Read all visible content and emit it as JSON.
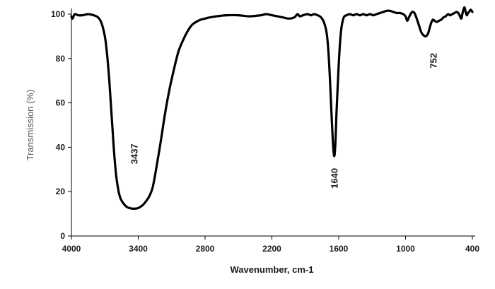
{
  "chart_data": {
    "type": "line",
    "xlabel": "Wavenumber, cm-1",
    "ylabel": "Transmission (%)",
    "xlim": [
      4000,
      400
    ],
    "ylim": [
      0,
      100
    ],
    "x_reversed": true,
    "grid": false,
    "x_ticks": [
      "4000",
      "3400",
      "2800",
      "2200",
      "1600",
      "1000",
      "400"
    ],
    "y_ticks": [
      "0",
      "20",
      "40",
      "60",
      "80",
      "100"
    ],
    "series": [
      {
        "color": "#000000",
        "points": [
          [
            4000,
            99
          ],
          [
            3990,
            98
          ],
          [
            3970,
            100
          ],
          [
            3940,
            99.5
          ],
          [
            3900,
            99.5
          ],
          [
            3850,
            100
          ],
          [
            3800,
            99.5
          ],
          [
            3760,
            98.5
          ],
          [
            3730,
            96
          ],
          [
            3700,
            90
          ],
          [
            3680,
            82
          ],
          [
            3660,
            70
          ],
          [
            3640,
            55
          ],
          [
            3620,
            40
          ],
          [
            3600,
            28
          ],
          [
            3580,
            21
          ],
          [
            3560,
            17
          ],
          [
            3530,
            14.5
          ],
          [
            3500,
            13
          ],
          [
            3470,
            12.5
          ],
          [
            3437,
            12.3
          ],
          [
            3400,
            12.6
          ],
          [
            3370,
            13.5
          ],
          [
            3340,
            15
          ],
          [
            3300,
            18
          ],
          [
            3270,
            22
          ],
          [
            3240,
            30
          ],
          [
            3200,
            42
          ],
          [
            3160,
            55
          ],
          [
            3120,
            66
          ],
          [
            3080,
            75
          ],
          [
            3040,
            83
          ],
          [
            3000,
            88
          ],
          [
            2960,
            92
          ],
          [
            2920,
            95
          ],
          [
            2880,
            96.5
          ],
          [
            2840,
            97.5
          ],
          [
            2800,
            98
          ],
          [
            2760,
            98.5
          ],
          [
            2700,
            99
          ],
          [
            2650,
            99.3
          ],
          [
            2600,
            99.5
          ],
          [
            2500,
            99.5
          ],
          [
            2400,
            99
          ],
          [
            2300,
            99.5
          ],
          [
            2250,
            100
          ],
          [
            2200,
            99.5
          ],
          [
            2150,
            99
          ],
          [
            2100,
            98.5
          ],
          [
            2050,
            98
          ],
          [
            2000,
            98.5
          ],
          [
            1970,
            100
          ],
          [
            1950,
            99
          ],
          [
            1920,
            99.5
          ],
          [
            1880,
            100
          ],
          [
            1850,
            99.5
          ],
          [
            1820,
            100
          ],
          [
            1790,
            99.5
          ],
          [
            1770,
            99
          ],
          [
            1750,
            98
          ],
          [
            1730,
            96
          ],
          [
            1710,
            92
          ],
          [
            1695,
            85
          ],
          [
            1680,
            72
          ],
          [
            1665,
            55
          ],
          [
            1652,
            42
          ],
          [
            1640,
            36
          ],
          [
            1630,
            42
          ],
          [
            1620,
            55
          ],
          [
            1605,
            72
          ],
          [
            1590,
            86
          ],
          [
            1575,
            94
          ],
          [
            1555,
            98.5
          ],
          [
            1530,
            99.5
          ],
          [
            1500,
            100
          ],
          [
            1470,
            99.5
          ],
          [
            1440,
            100
          ],
          [
            1410,
            99.5
          ],
          [
            1380,
            100
          ],
          [
            1350,
            99.5
          ],
          [
            1320,
            100
          ],
          [
            1290,
            99.5
          ],
          [
            1260,
            100
          ],
          [
            1230,
            100.5
          ],
          [
            1200,
            101
          ],
          [
            1170,
            101.5
          ],
          [
            1140,
            101.5
          ],
          [
            1110,
            101
          ],
          [
            1080,
            100.5
          ],
          [
            1050,
            100.5
          ],
          [
            1020,
            100
          ],
          [
            1000,
            99
          ],
          [
            985,
            97
          ],
          [
            970,
            98.5
          ],
          [
            955,
            100
          ],
          [
            940,
            101
          ],
          [
            920,
            100.5
          ],
          [
            900,
            98
          ],
          [
            880,
            95
          ],
          [
            860,
            92
          ],
          [
            840,
            90.5
          ],
          [
            820,
            90
          ],
          [
            800,
            91
          ],
          [
            785,
            93.5
          ],
          [
            770,
            96
          ],
          [
            755,
            97.5
          ],
          [
            740,
            97
          ],
          [
            720,
            96.5
          ],
          [
            700,
            97
          ],
          [
            680,
            97.5
          ],
          [
            660,
            98.5
          ],
          [
            640,
            99
          ],
          [
            620,
            100
          ],
          [
            600,
            99.5
          ],
          [
            580,
            100
          ],
          [
            560,
            100.5
          ],
          [
            540,
            101
          ],
          [
            520,
            100
          ],
          [
            500,
            98
          ],
          [
            490,
            100
          ],
          [
            480,
            102
          ],
          [
            470,
            103
          ],
          [
            460,
            101
          ],
          [
            450,
            99.5
          ],
          [
            440,
            100.5
          ],
          [
            430,
            101
          ],
          [
            415,
            102
          ],
          [
            400,
            101
          ]
        ]
      }
    ],
    "annotations": [
      {
        "text": "3437",
        "x": 3437,
        "y": 37
      },
      {
        "text": "1640",
        "x": 1640,
        "y": 26
      },
      {
        "text": "752",
        "x": 752,
        "y": 79
      }
    ]
  }
}
